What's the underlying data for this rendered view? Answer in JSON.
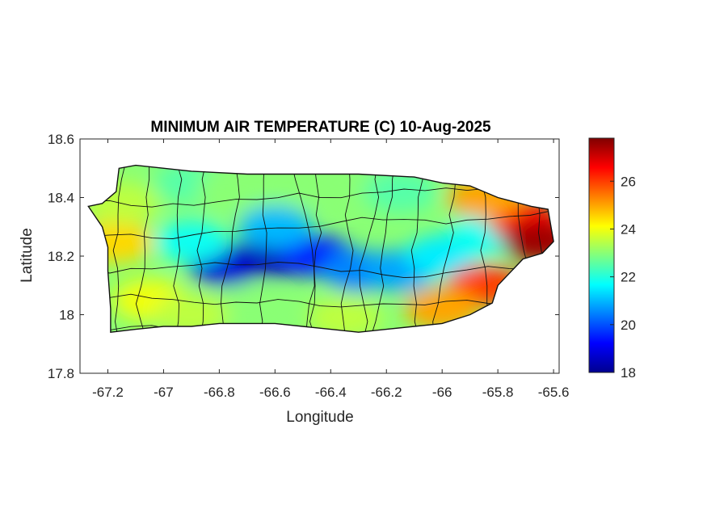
{
  "chart_data": {
    "type": "heatmap",
    "title": "MINIMUM AIR TEMPERATURE (C) 10-Aug-2025",
    "xlabel": "Longitude",
    "ylabel": "Latitude",
    "xlim": [
      -67.3,
      -65.58
    ],
    "ylim": [
      17.8,
      18.6
    ],
    "x_ticks": [
      -67.2,
      -67,
      -66.8,
      -66.6,
      -66.4,
      -66.2,
      -66,
      -65.8,
      -65.6
    ],
    "x_tick_labels": [
      "-67.2",
      "-67",
      "-66.8",
      "-66.6",
      "-66.4",
      "-66.2",
      "-66",
      "-65.8",
      "-65.6"
    ],
    "y_ticks": [
      17.8,
      18,
      18.2,
      18.4,
      18.6
    ],
    "y_tick_labels": [
      "17.8",
      "18",
      "18.2",
      "18.4",
      "18.6"
    ],
    "colorbar": {
      "colormap": "jet",
      "range": [
        18,
        27.8
      ],
      "ticks": [
        18,
        20,
        22,
        24,
        26
      ],
      "tick_labels": [
        "18",
        "20",
        "22",
        "24",
        "26"
      ]
    },
    "island_outline": [
      [
        -67.27,
        18.37
      ],
      [
        -67.22,
        18.38
      ],
      [
        -67.17,
        18.42
      ],
      [
        -67.16,
        18.5
      ],
      [
        -67.1,
        18.51
      ],
      [
        -66.9,
        18.49
      ],
      [
        -66.7,
        18.48
      ],
      [
        -66.5,
        18.48
      ],
      [
        -66.3,
        18.48
      ],
      [
        -66.1,
        18.47
      ],
      [
        -66.0,
        18.45
      ],
      [
        -65.9,
        18.44
      ],
      [
        -65.8,
        18.4
      ],
      [
        -65.68,
        18.37
      ],
      [
        -65.62,
        18.36
      ],
      [
        -65.6,
        18.25
      ],
      [
        -65.64,
        18.21
      ],
      [
        -65.71,
        18.19
      ],
      [
        -65.8,
        18.1
      ],
      [
        -65.82,
        18.04
      ],
      [
        -65.9,
        18.0
      ],
      [
        -66.0,
        17.97
      ],
      [
        -66.1,
        17.96
      ],
      [
        -66.2,
        17.95
      ],
      [
        -66.3,
        17.94
      ],
      [
        -66.4,
        17.95
      ],
      [
        -66.5,
        17.96
      ],
      [
        -66.6,
        17.97
      ],
      [
        -66.7,
        17.97
      ],
      [
        -66.8,
        17.97
      ],
      [
        -66.9,
        17.96
      ],
      [
        -67.0,
        17.96
      ],
      [
        -67.1,
        17.95
      ],
      [
        -67.19,
        17.94
      ],
      [
        -67.19,
        18.02
      ],
      [
        -67.2,
        18.15
      ],
      [
        -67.2,
        18.23
      ],
      [
        -67.22,
        18.3
      ]
    ],
    "temperature_field": [
      {
        "lon": -67.17,
        "lat": 18.25,
        "temp": 24.5
      },
      {
        "lon": -67.15,
        "lat": 18.38,
        "temp": 23.5
      },
      {
        "lon": -67.05,
        "lat": 18.05,
        "temp": 24.0
      },
      {
        "lon": -66.9,
        "lat": 18.45,
        "temp": 22.5
      },
      {
        "lon": -66.75,
        "lat": 18.43,
        "temp": 23.0
      },
      {
        "lon": -66.55,
        "lat": 18.45,
        "temp": 23.0
      },
      {
        "lon": -66.35,
        "lat": 18.45,
        "temp": 23.0
      },
      {
        "lon": -66.15,
        "lat": 18.42,
        "temp": 22.5
      },
      {
        "lon": -66.78,
        "lat": 18.17,
        "temp": 18.8
      },
      {
        "lon": -66.6,
        "lat": 18.2,
        "temp": 18.5
      },
      {
        "lon": -66.45,
        "lat": 18.2,
        "temp": 19.5
      },
      {
        "lon": -66.3,
        "lat": 18.15,
        "temp": 20.5
      },
      {
        "lon": -66.15,
        "lat": 18.15,
        "temp": 20.8
      },
      {
        "lon": -66.6,
        "lat": 18.3,
        "temp": 21.0
      },
      {
        "lon": -66.9,
        "lat": 18.25,
        "temp": 21.8
      },
      {
        "lon": -66.0,
        "lat": 18.2,
        "temp": 21.5
      },
      {
        "lon": -65.85,
        "lat": 18.27,
        "temp": 21.8
      },
      {
        "lon": -65.7,
        "lat": 18.32,
        "temp": 26.5
      },
      {
        "lon": -65.65,
        "lat": 18.25,
        "temp": 27.5
      },
      {
        "lon": -65.85,
        "lat": 18.4,
        "temp": 25.0
      },
      {
        "lon": -65.85,
        "lat": 18.1,
        "temp": 26.0
      },
      {
        "lon": -66.0,
        "lat": 18.02,
        "temp": 25.0
      },
      {
        "lon": -66.35,
        "lat": 17.99,
        "temp": 23.5
      },
      {
        "lon": -66.7,
        "lat": 18.02,
        "temp": 23.0
      },
      {
        "lon": -66.9,
        "lat": 18.0,
        "temp": 23.5
      }
    ]
  }
}
